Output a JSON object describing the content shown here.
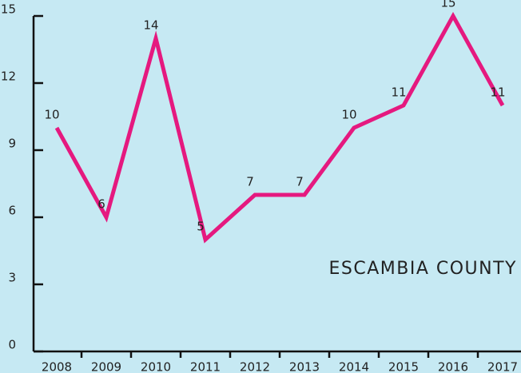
{
  "chart_data": {
    "type": "line",
    "annotation": "ESCAMBIA COUNTY",
    "categories": [
      "2008",
      "2009",
      "2010",
      "2011",
      "2012",
      "2013",
      "2014",
      "2015",
      "2016",
      "2017"
    ],
    "series": [
      {
        "color": "#e5197f",
        "values": [
          10,
          6,
          14,
          5,
          7,
          7,
          10,
          11,
          15,
          11
        ]
      }
    ],
    "ylim": [
      0,
      15
    ],
    "yticks": [
      0,
      3,
      6,
      9,
      12,
      15
    ]
  }
}
